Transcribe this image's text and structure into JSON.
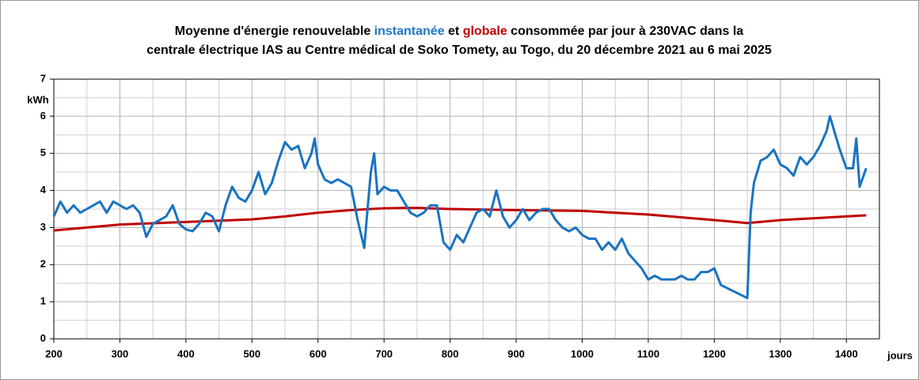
{
  "chart_data": {
    "type": "line",
    "title_lines": [
      [
        {
          "text": "Moyenne d'énergie renouvelable ",
          "color": "#000000"
        },
        {
          "text": "instantanée",
          "color": "#1f77c4"
        },
        {
          "text": " et ",
          "color": "#000000"
        },
        {
          "text": "globale",
          "color": "#c00000"
        },
        {
          "text": " consommée par jour à 230VAC dans la",
          "color": "#000000"
        }
      ],
      [
        {
          "text": "centrale électrique IAS au Centre médical de Soko Tomety, au Togo, du 20 décembre 2021 au 6 mai 2025",
          "color": "#000000"
        }
      ]
    ],
    "ylabel": "kWh",
    "xlabel": "jours",
    "xlim": [
      200,
      1450
    ],
    "xticks": [
      200,
      300,
      400,
      500,
      600,
      700,
      800,
      900,
      1000,
      1100,
      1200,
      1300,
      1400
    ],
    "ylim": [
      0,
      7
    ],
    "yticks": [
      0,
      1,
      2,
      3,
      4,
      5,
      6,
      7
    ],
    "grid": true,
    "minor_grid": true,
    "series": [
      {
        "color": "#1a73c0",
        "x": [
          200,
          210,
          220,
          230,
          240,
          250,
          260,
          270,
          280,
          290,
          300,
          310,
          320,
          330,
          340,
          350,
          360,
          370,
          380,
          390,
          400,
          410,
          420,
          430,
          440,
          450,
          460,
          470,
          480,
          490,
          500,
          510,
          520,
          530,
          540,
          550,
          560,
          570,
          580,
          590,
          595,
          600,
          610,
          620,
          630,
          640,
          650,
          660,
          670,
          675,
          680,
          685,
          690,
          700,
          710,
          720,
          730,
          740,
          750,
          760,
          770,
          780,
          790,
          800,
          810,
          820,
          830,
          840,
          850,
          860,
          870,
          880,
          890,
          900,
          910,
          920,
          930,
          940,
          950,
          960,
          970,
          980,
          990,
          1000,
          1010,
          1020,
          1030,
          1040,
          1050,
          1060,
          1070,
          1080,
          1090,
          1100,
          1110,
          1120,
          1130,
          1140,
          1150,
          1160,
          1170,
          1180,
          1190,
          1200,
          1210,
          1250,
          1255,
          1260,
          1270,
          1280,
          1290,
          1300,
          1310,
          1320,
          1330,
          1340,
          1350,
          1360,
          1370,
          1375,
          1380,
          1390,
          1400,
          1410,
          1415,
          1420,
          1430
        ],
        "values": [
          3.3,
          3.7,
          3.4,
          3.6,
          3.4,
          3.5,
          3.6,
          3.7,
          3.4,
          3.7,
          3.6,
          3.5,
          3.6,
          3.4,
          2.75,
          3.1,
          3.2,
          3.3,
          3.6,
          3.1,
          2.95,
          2.9,
          3.1,
          3.4,
          3.3,
          2.9,
          3.6,
          4.1,
          3.8,
          3.7,
          4.0,
          4.5,
          3.9,
          4.2,
          4.8,
          5.3,
          5.1,
          5.2,
          4.6,
          5.0,
          5.4,
          4.7,
          4.3,
          4.2,
          4.3,
          4.2,
          4.1,
          3.2,
          2.45,
          3.5,
          4.5,
          5.0,
          3.9,
          4.1,
          4.0,
          4.0,
          3.7,
          3.4,
          3.3,
          3.4,
          3.6,
          3.6,
          2.6,
          2.4,
          2.8,
          2.6,
          3.0,
          3.4,
          3.5,
          3.3,
          4.0,
          3.3,
          3.0,
          3.2,
          3.5,
          3.2,
          3.4,
          3.5,
          3.5,
          3.2,
          3.0,
          2.9,
          3.0,
          2.8,
          2.7,
          2.7,
          2.4,
          2.6,
          2.4,
          2.7,
          2.3,
          2.1,
          1.9,
          1.6,
          1.7,
          1.6,
          1.6,
          1.6,
          1.7,
          1.6,
          1.6,
          1.8,
          1.8,
          1.9,
          1.45,
          1.1,
          3.4,
          4.2,
          4.8,
          4.9,
          5.1,
          4.7,
          4.6,
          4.4,
          4.9,
          4.7,
          4.9,
          5.2,
          5.6,
          6.0,
          5.7,
          5.1,
          4.6,
          4.6,
          5.4,
          4.1,
          4.6
        ]
      },
      {
        "color": "#c00000",
        "x": [
          200,
          300,
          400,
          500,
          550,
          600,
          650,
          700,
          750,
          800,
          900,
          1000,
          1100,
          1200,
          1250,
          1300,
          1400,
          1430
        ],
        "values": [
          2.92,
          3.08,
          3.15,
          3.22,
          3.3,
          3.4,
          3.47,
          3.52,
          3.53,
          3.5,
          3.47,
          3.45,
          3.35,
          3.2,
          3.12,
          3.2,
          3.3,
          3.33
        ]
      }
    ]
  }
}
